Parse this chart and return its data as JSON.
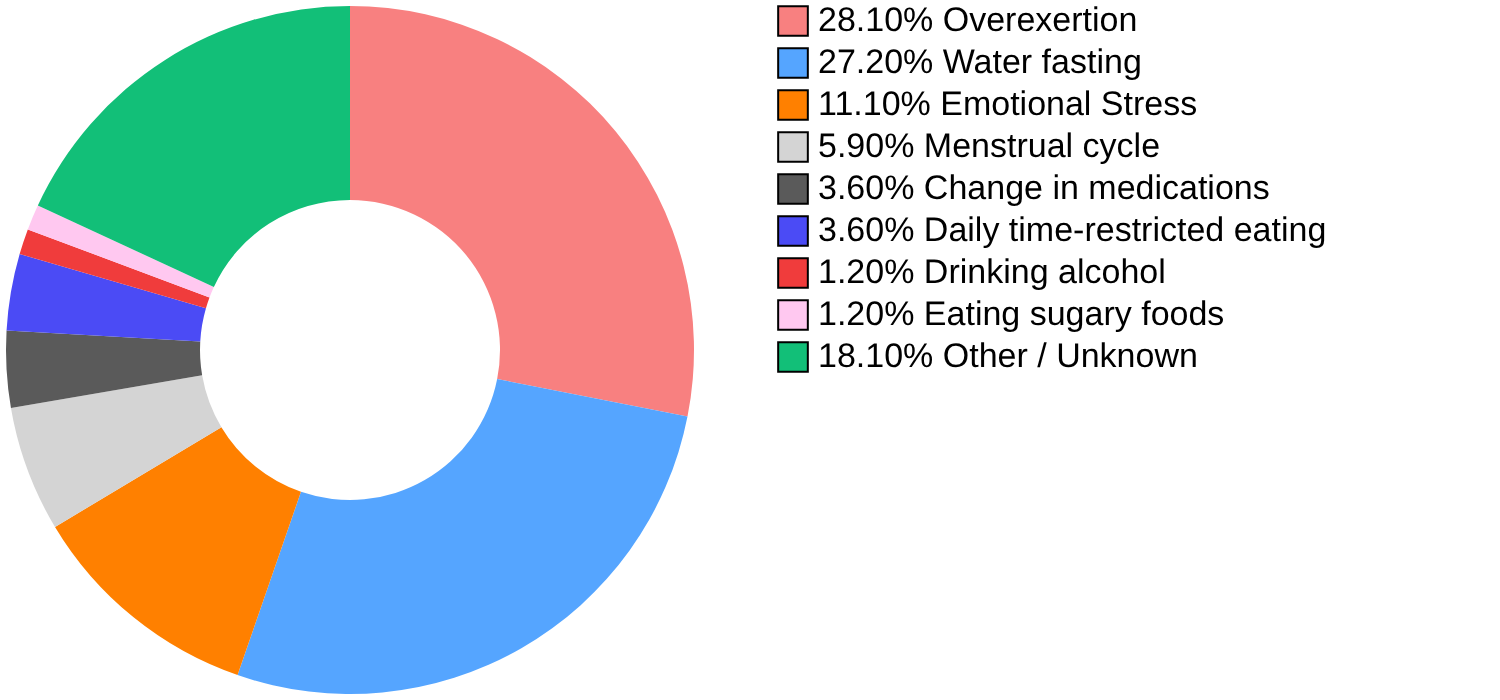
{
  "chart_data": {
    "type": "donut",
    "categories": [
      "Overexertion",
      "Water fasting",
      "Emotional Stress",
      "Menstrual cycle",
      "Change in medications",
      "Daily time-restricted eating",
      "Drinking alcohol",
      "Eating sugary foods",
      "Other / Unknown"
    ],
    "values": [
      28.1,
      27.2,
      11.1,
      5.9,
      3.6,
      3.6,
      1.2,
      1.2,
      18.1
    ],
    "value_labels": [
      "28.10%",
      "27.20%",
      "11.10%",
      "5.90%",
      "3.60%",
      "3.60%",
      "1.20%",
      "1.20%",
      "18.10%"
    ],
    "colors": [
      "#f88080",
      "#55a5ff",
      "#ff8000",
      "#d4d4d4",
      "#5a5a5a",
      "#4b4bf5",
      "#f03c3c",
      "#ffc8f0",
      "#12bf78"
    ],
    "legend": "right"
  }
}
